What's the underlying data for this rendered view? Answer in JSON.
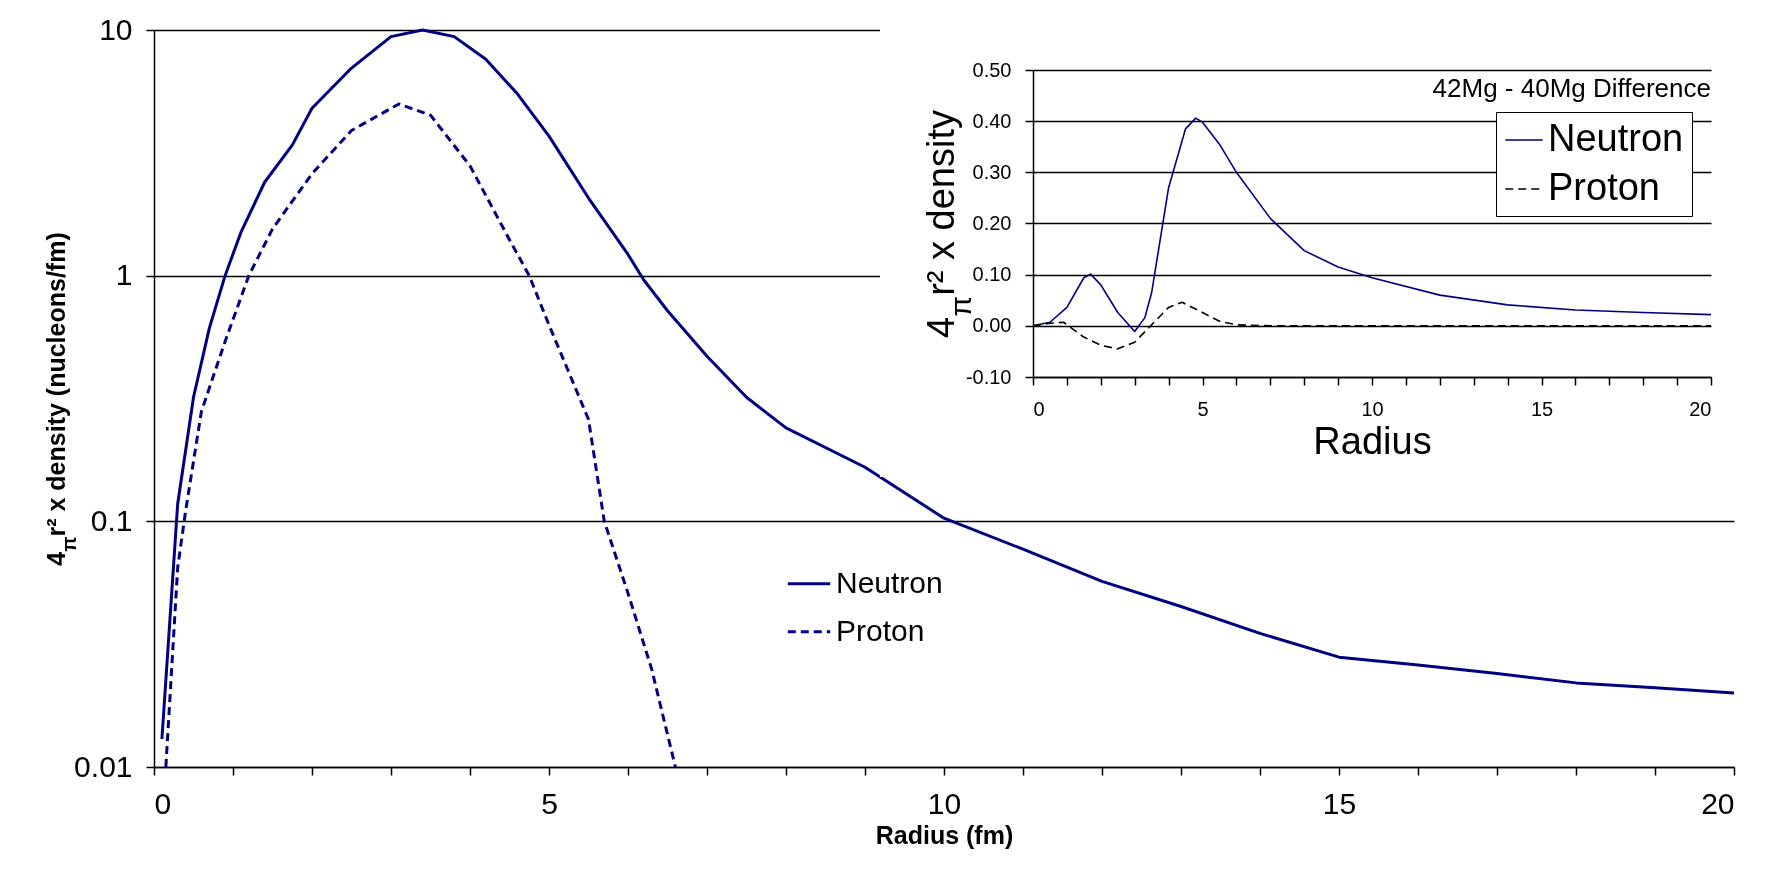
{
  "chart_data": [
    {
      "type": "line",
      "xlabel": "Radius (fm)",
      "ylabel": "4$_{π}$r² x density (nucleons/fm)",
      "log": "y",
      "grid": "y",
      "legend": "bottom",
      "xlim": [
        0,
        20
      ],
      "ylim": [
        0.01,
        10
      ],
      "xticks": [
        0,
        {
          "value": 1,
          "label": null
        },
        {
          "value": 2,
          "label": null
        },
        {
          "value": 3,
          "label": null
        },
        {
          "value": 4,
          "label": null
        },
        5,
        {
          "value": 6,
          "label": null
        },
        {
          "value": 7,
          "label": null
        },
        {
          "value": 8,
          "label": null
        },
        {
          "value": 9,
          "label": null
        },
        10,
        {
          "value": 11,
          "label": null
        },
        {
          "value": 12,
          "label": null
        },
        {
          "value": 13,
          "label": null
        },
        {
          "value": 14,
          "label": null
        },
        15,
        {
          "value": 16,
          "label": null
        },
        {
          "value": 17,
          "label": null
        },
        {
          "value": 18,
          "label": null
        },
        {
          "value": 19,
          "label": null
        },
        20
      ],
      "yticks": [
        0.01,
        0.1,
        1,
        10
      ],
      "series": [
        {
          "name": "Neutron",
          "color": "#000080",
          "line_style": "solid",
          "x": [
            0.1,
            0.3,
            0.5,
            0.7,
            0.9,
            1.1,
            1.4,
            1.75,
            2,
            2.5,
            3,
            3.4,
            3.8,
            4.2,
            4.6,
            5,
            5.5,
            6,
            6.2,
            6.5,
            7,
            7.5,
            8,
            9,
            10,
            11,
            12,
            13,
            14,
            15,
            16,
            17,
            18,
            19,
            20
          ],
          "values": [
            0.013,
            0.118,
            0.32,
            0.61,
            1.0,
            1.5,
            2.4,
            3.4,
            4.8,
            7.0,
            9.4,
            10,
            9.4,
            7.6,
            5.5,
            3.7,
            2.07,
            1.22,
            0.96,
            0.72,
            0.47,
            0.32,
            0.24,
            0.166,
            0.103,
            0.077,
            0.057,
            0.045,
            0.035,
            0.028,
            0.026,
            0.024,
            0.022,
            0.021,
            0.02
          ]
        },
        {
          "name": "Proton",
          "color": "#000080",
          "line_style": "dashed",
          "x": [
            0.15,
            0.3,
            0.4,
            0.6,
            0.9,
            1.2,
            1.5,
            2,
            2.5,
            3.1,
            3.5,
            4,
            4.5,
            4.75,
            5,
            5.5,
            5.7,
            6,
            6.3,
            6.6
          ],
          "values": [
            0.01,
            0.065,
            0.11,
            0.28,
            0.54,
            1.0,
            1.55,
            2.6,
            3.9,
            5.0,
            4.5,
            2.8,
            1.4,
            1.0,
            0.63,
            0.26,
            0.1,
            0.051,
            0.025,
            0.01
          ]
        }
      ]
    },
    {
      "type": "line",
      "title": "42Mg - 40Mg Difference",
      "xlabel": "Radius",
      "ylabel": "4$_{π}$r² x density",
      "grid": "y",
      "legend": "top right",
      "xlim": [
        0,
        20
      ],
      "ylim": [
        -0.1,
        0.5
      ],
      "xticks": [
        0,
        {
          "value": 1,
          "label": null
        },
        {
          "value": 2,
          "label": null
        },
        {
          "value": 3,
          "label": null
        },
        {
          "value": 4,
          "label": null
        },
        5,
        {
          "value": 6,
          "label": null
        },
        {
          "value": 7,
          "label": null
        },
        {
          "value": 8,
          "label": null
        },
        {
          "value": 9,
          "label": null
        },
        10,
        {
          "value": 11,
          "label": null
        },
        {
          "value": 12,
          "label": null
        },
        {
          "value": 13,
          "label": null
        },
        {
          "value": 14,
          "label": null
        },
        15,
        {
          "value": 16,
          "label": null
        },
        {
          "value": 17,
          "label": null
        },
        {
          "value": 18,
          "label": null
        },
        {
          "value": 19,
          "label": null
        },
        20
      ],
      "yticks": [
        {
          "value": -0.1,
          "label": "-0.10"
        },
        {
          "value": 0,
          "label": "0.00"
        },
        {
          "value": 0.1,
          "label": "0.10"
        },
        {
          "value": 0.2,
          "label": "0.20"
        },
        {
          "value": 0.3,
          "label": "0.30"
        },
        {
          "value": 0.4,
          "label": "0.40"
        },
        {
          "value": 0.5,
          "label": "0.50"
        }
      ],
      "series": [
        {
          "name": "Neutron",
          "color": "#000080",
          "line_style": "solid",
          "x": [
            0,
            0.5,
            1,
            1.5,
            1.7,
            2,
            2.5,
            3,
            3.3,
            3.5,
            4,
            4.5,
            4.8,
            5,
            5.5,
            6,
            7,
            8,
            9,
            10,
            12,
            14,
            16,
            18,
            20
          ],
          "values": [
            0,
            0.007,
            0.036,
            0.094,
            0.101,
            0.08,
            0.026,
            -0.011,
            0.016,
            0.065,
            0.27,
            0.385,
            0.406,
            0.398,
            0.355,
            0.3,
            0.21,
            0.147,
            0.115,
            0.094,
            0.06,
            0.041,
            0.031,
            0.026,
            0.022
          ]
        },
        {
          "name": "Proton",
          "color": "#000000",
          "line_style": "dashed",
          "x": [
            0,
            0.5,
            0.9,
            1.5,
            2,
            2.5,
            3,
            3.5,
            4,
            4.4,
            5,
            5.5,
            6,
            7,
            20
          ],
          "values": [
            0,
            0.005,
            0.007,
            -0.022,
            -0.038,
            -0.045,
            -0.032,
            0.002,
            0.036,
            0.046,
            0.026,
            0.009,
            0.002,
            0,
            0
          ]
        }
      ]
    }
  ]
}
